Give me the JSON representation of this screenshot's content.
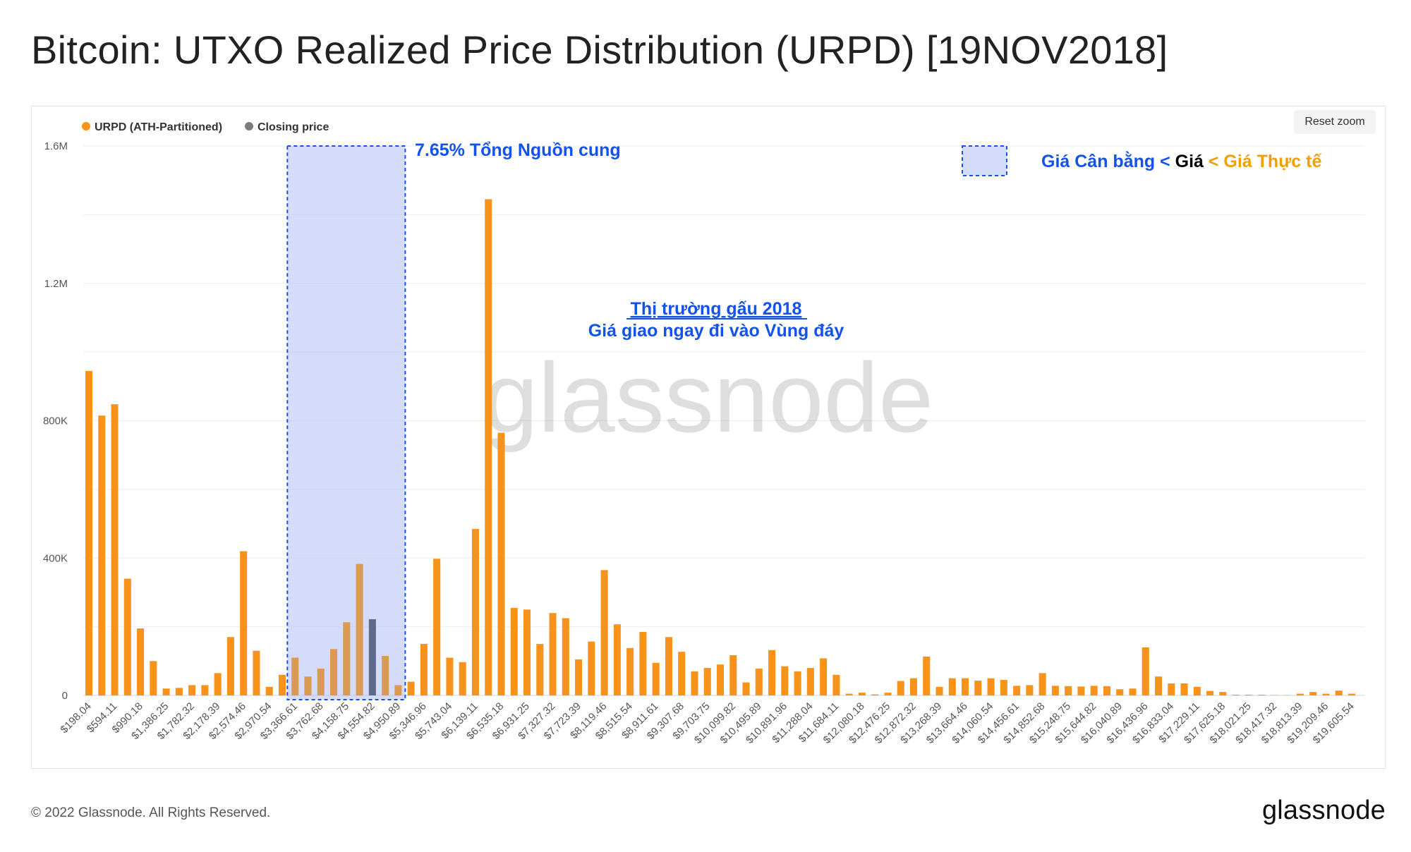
{
  "page": {
    "title": "Bitcoin: UTXO Realized Price Distribution (URPD) [19NOV2018]",
    "reset_zoom_label": "Reset zoom",
    "footer_copyright": "© 2022 Glassnode. All Rights Reserved.",
    "footer_logo": "glassnode",
    "watermark": "glassnode"
  },
  "legend": [
    {
      "label": "URPD (ATH-Partitioned)",
      "color": "#f7931a"
    },
    {
      "label": "Closing price",
      "color": "#7c7c7c"
    }
  ],
  "annotations": {
    "supply_pct": "7.65% Tổng Nguồn cung",
    "market_title": "Thị trường gấu 2018",
    "market_sub": "Giá giao ngay đi vào Vùng đáy",
    "legend_part1": "Giá Cân bằng < ",
    "legend_part2": "Giá",
    "legend_part3": " < Giá Thực tế",
    "colors": {
      "blue": "#1452e8",
      "orange": "#f0a000",
      "highlight_fill": "#b3bff5",
      "highlight_border": "#1452e8"
    }
  },
  "chart_data": {
    "type": "bar",
    "ylim": [
      0,
      1600000
    ],
    "yticks": [
      "0",
      "400K",
      "800K",
      "1.2M",
      "1.6M"
    ],
    "ytick_values": [
      0,
      400000,
      800000,
      1200000,
      1600000
    ],
    "grid": true,
    "legend_position": "top-left",
    "x_tick_labels": [
      "$198.04",
      "$594.11",
      "$990.18",
      "$1,386.25",
      "$1,782.32",
      "$2,178.39",
      "$2,574.46",
      "$2,970.54",
      "$3,366.61",
      "$3,762.68",
      "$4,158.75",
      "$4,554.82",
      "$4,950.89",
      "$5,346.96",
      "$5,743.04",
      "$6,139.11",
      "$6,535.18",
      "$6,931.25",
      "$7,327.32",
      "$7,723.39",
      "$8,119.46",
      "$8,515.54",
      "$8,911.61",
      "$9,307.68",
      "$9,703.75",
      "$10,099.82",
      "$10,495.89",
      "$10,891.96",
      "$11,288.04",
      "$11,684.11",
      "$12,080.18",
      "$12,476.25",
      "$12,872.32",
      "$13,268.39",
      "$13,664.46",
      "$14,060.54",
      "$14,456.61",
      "$14,852.68",
      "$15,248.75",
      "$15,644.82",
      "$16,040.89",
      "$16,436.96",
      "$16,833.04",
      "$17,229.11",
      "$17,625.18",
      "$18,021.25",
      "$18,417.32",
      "$18,813.39",
      "$19,209.46",
      "$19,605.54"
    ],
    "bin_start": 198.04,
    "bin_width": 198.035,
    "values": [
      945000,
      815000,
      848000,
      340000,
      195000,
      100000,
      20000,
      22000,
      30000,
      30000,
      65000,
      170000,
      420000,
      130000,
      25000,
      60000,
      110000,
      55000,
      78000,
      135000,
      213000,
      383000,
      222000,
      115000,
      30000,
      40000,
      150000,
      398000,
      110000,
      97000,
      485000,
      1445000,
      765000,
      255000,
      250000,
      150000,
      240000,
      225000,
      105000,
      157000,
      365000,
      207000,
      138000,
      185000,
      95000,
      170000,
      127000,
      70000,
      80000,
      90000,
      117000,
      38000,
      78000,
      132000,
      85000,
      70000,
      80000,
      108000,
      60000,
      5000,
      8000,
      3000,
      8000,
      42000,
      50000,
      113000,
      25000,
      50000,
      50000,
      43000,
      50000,
      45000,
      28000,
      30000,
      65000,
      28000,
      27000,
      26000,
      28000,
      27000,
      18000,
      20000,
      140000,
      55000,
      35000,
      35000,
      25000,
      13000,
      10000,
      2000,
      2000,
      2000,
      1000,
      1000,
      5000,
      10000,
      5000,
      14000,
      5000
    ],
    "closing_price_bar_index": 22,
    "closing_price_value": 222000,
    "highlight_range": {
      "from": "$3,366.61",
      "to": "$4,950.89"
    }
  }
}
